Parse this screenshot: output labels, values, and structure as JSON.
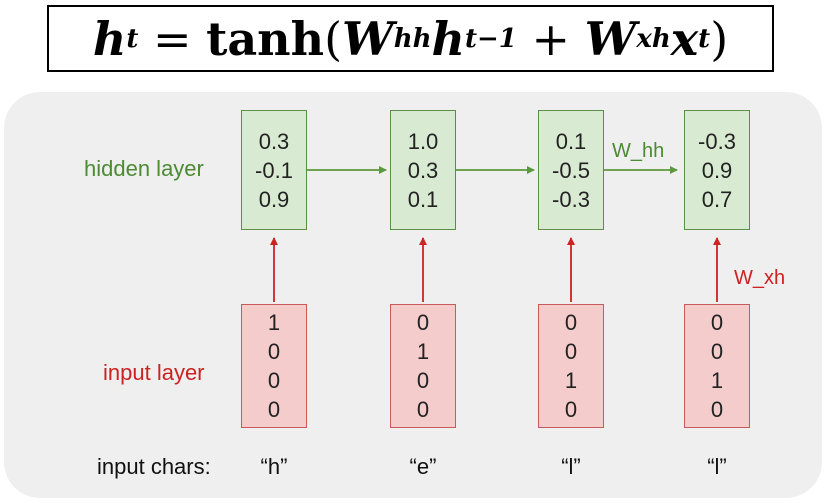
{
  "equation": {
    "h": "h",
    "t": "t",
    "eq": " = ",
    "tanh": "tanh",
    "open": "(",
    "W1": "W",
    "hh": "hh",
    "h2": "h",
    "tm1": "t−1",
    "plus": " + ",
    "W2": "W",
    "xh": "xh",
    "x": "x",
    "t2": "t",
    "close": ")"
  },
  "labels": {
    "hidden_layer": "hidden layer",
    "input_layer": "input layer",
    "input_chars": "input chars:",
    "w_hh": "W_hh",
    "w_xh": "W_xh"
  },
  "columns": [
    {
      "char": "“h”",
      "hidden": [
        "0.3",
        "-0.1",
        "0.9"
      ],
      "input": [
        "1",
        "0",
        "0",
        "0"
      ]
    },
    {
      "char": "“e”",
      "hidden": [
        "1.0",
        "0.3",
        "0.1"
      ],
      "input": [
        "0",
        "1",
        "0",
        "0"
      ]
    },
    {
      "char": "“l”",
      "hidden": [
        "0.1",
        "-0.5",
        "-0.3"
      ],
      "input": [
        "0",
        "0",
        "1",
        "0"
      ]
    },
    {
      "char": "“l”",
      "hidden": [
        "-0.3",
        "0.9",
        "0.7"
      ],
      "input": [
        "0",
        "0",
        "1",
        "0"
      ]
    }
  ],
  "colors": {
    "hidden_fill": "#d9ead3",
    "hidden_border": "#5a8f45",
    "input_fill": "#f4cccc",
    "input_border": "#c95a5a",
    "recurrent_arrow": "#5a9a3c",
    "input_arrow": "#cc2222",
    "panel_bg": "#efefef"
  }
}
